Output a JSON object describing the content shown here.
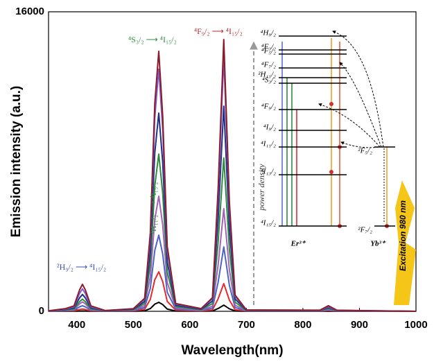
{
  "chart_data": {
    "type": "line",
    "xlabel": "Wavelength(nm)",
    "ylabel": "Emission intensity (a.u.)",
    "xlim": [
      350,
      1000
    ],
    "xticks": [
      400,
      500,
      600,
      700,
      800,
      900,
      1000
    ],
    "ylim": [
      0,
      16000
    ],
    "yticks": [
      0,
      16000
    ],
    "x": [
      350,
      380,
      395,
      405,
      410,
      415,
      425,
      450,
      500,
      520,
      530,
      538,
      545,
      552,
      560,
      575,
      620,
      640,
      650,
      660,
      670,
      680,
      700,
      830,
      845,
      860,
      1000
    ],
    "series": [
      {
        "color": "#000000",
        "values": [
          0,
          2,
          4,
          16,
          20,
          16,
          4,
          1,
          5,
          24,
          144,
          384,
          480,
          360,
          120,
          14,
          3,
          17,
          149,
          330,
          132,
          20,
          2,
          2,
          10,
          2,
          0
        ]
      },
      {
        "color": "#e8282b",
        "values": [
          2,
          12,
          24,
          96,
          120,
          96,
          24,
          4,
          21,
          106,
          633,
          1688,
          2110,
          1583,
          528,
          63,
          15,
          74,
          666,
          1480,
          592,
          89,
          7,
          8,
          40,
          8,
          0
        ]
      },
      {
        "color": "#4a63c4",
        "values": [
          6,
          30,
          60,
          240,
          300,
          240,
          60,
          9,
          41,
          204,
          1221,
          3256,
          4070,
          3053,
          1018,
          122,
          34,
          172,
          1548,
          3440,
          1376,
          206,
          17,
          16,
          80,
          16,
          0
        ]
      },
      {
        "color": "#a560b8",
        "values": [
          10,
          50,
          100,
          400,
          500,
          400,
          100,
          15,
          62,
          308,
          1845,
          4920,
          6150,
          4613,
          1538,
          185,
          55,
          274,
          2466,
          5480,
          2192,
          329,
          27,
          24,
          120,
          24,
          0
        ]
      },
      {
        "color": "#2e8b3e",
        "values": [
          13,
          65,
          130,
          520,
          650,
          520,
          130,
          20,
          84,
          420,
          2520,
          6720,
          8400,
          6300,
          2100,
          252,
          82,
          410,
          3686,
          8190,
          3276,
          491,
          41,
          30,
          150,
          30,
          0
        ]
      },
      {
        "color": "#1f2f8a",
        "values": [
          18,
          90,
          180,
          720,
          900,
          720,
          180,
          27,
          106,
          530,
          3177,
          8472,
          10590,
          7943,
          2648,
          318,
          110,
          548,
          4932,
          10960,
          4384,
          658,
          55,
          40,
          200,
          40,
          0
        ]
      },
      {
        "color": "#7c5cc4",
        "values": [
          24,
          120,
          240,
          960,
          1200,
          960,
          240,
          36,
          129,
          647,
          3879,
          10344,
          12930,
          9698,
          3233,
          388,
          136,
          680,
          6120,
          13600,
          5440,
          816,
          68,
          50,
          250,
          50,
          0
        ]
      },
      {
        "color": "#8b1a2a",
        "values": [
          29,
          144,
          288,
          1152,
          1440,
          1152,
          288,
          43,
          139,
          695,
          4167,
          11112,
          13890,
          10418,
          3473,
          417,
          145,
          726,
          6534,
          14520,
          5808,
          871,
          73,
          60,
          300,
          60,
          0
        ]
      }
    ],
    "annotations": [
      "²H₉/₂ ⟶ ⁴I₁₅/₂",
      "⁴S₃/₂ ⟶ ⁴I₁₅/₂",
      "⁴F₉/₂ ⟶ ⁴I₁₅/₂",
      "²H₁₁/₂ ⟶ ⁴I₁₅/₂",
      "power density"
    ],
    "inset": {
      "er_levels": [
        "⁴H₉/₂",
        "⁴F₃/₂",
        "⁴F₅/₂",
        "⁴F₇/₂",
        "²H₁₁/₂",
        "⁴S₃/₂",
        "⁴F₉/₂",
        "⁴I₉/₂",
        "⁴I₁₁/₂",
        "⁴I₁₃/₂",
        "⁴I₁₅/₂"
      ],
      "yb_levels": [
        "²F₅/₂",
        "²F₇/₂"
      ],
      "ions": [
        "Er³⁺",
        "Yb³⁺"
      ],
      "excitation": "Excitation 980 nm"
    }
  }
}
